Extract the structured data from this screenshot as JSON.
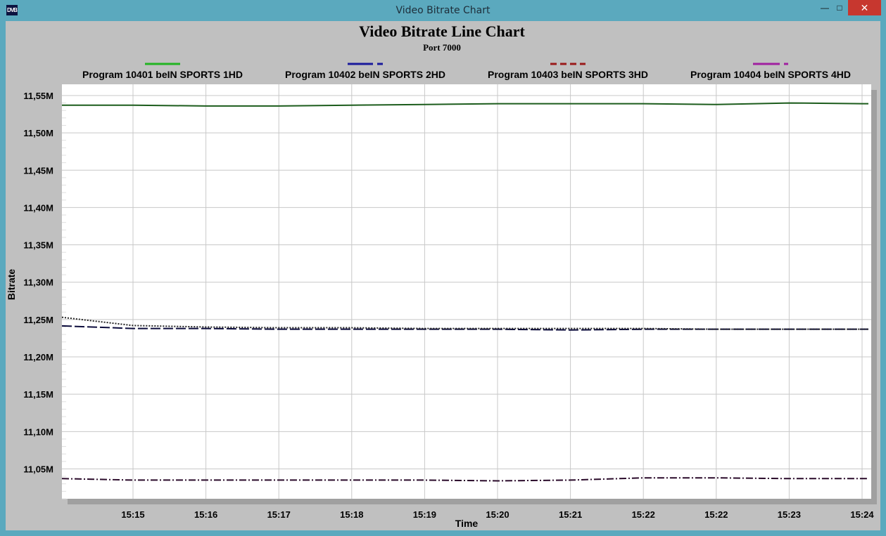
{
  "window": {
    "title": "Video Bitrate Chart",
    "icon_label": "DVB",
    "minimize_icon": "minimize-icon",
    "maximize_icon": "maximize-icon",
    "close_icon": "close-icon"
  },
  "chart_data": {
    "type": "line",
    "title": "Video Bitrate Line Chart",
    "subtitle": "Port 7000",
    "xlabel": "Time",
    "ylabel": "Bitrate",
    "x_ticks": [
      "15:15",
      "15:16",
      "15:17",
      "15:18",
      "15:19",
      "15:20",
      "15:21",
      "15:22",
      "15:22",
      "15:23",
      "15:24"
    ],
    "y_ticks": [
      "11,05M",
      "11,10M",
      "11,15M",
      "11,20M",
      "11,25M",
      "11,30M",
      "11,35M",
      "11,40M",
      "11,45M",
      "11,50M",
      "11,55M"
    ],
    "y_tick_values": [
      11.05,
      11.1,
      11.15,
      11.2,
      11.25,
      11.3,
      11.35,
      11.4,
      11.45,
      11.5,
      11.55
    ],
    "ylim": [
      11.01,
      11.565
    ],
    "y_unit": "M",
    "grid": true,
    "legend_placement": "top",
    "series": [
      {
        "name": "Program 10401 beIN SPORTS 1HD",
        "legend_color": "#22b422",
        "line_color": "#1c5c1c",
        "dash": "solid",
        "start": 11.537,
        "values": [
          11.537,
          11.536,
          11.536,
          11.537,
          11.538,
          11.539,
          11.539,
          11.539,
          11.538,
          11.54,
          11.539
        ]
      },
      {
        "name": "Program 10402 beIN SPORTS 2HD",
        "legend_color": "#1a1a9c",
        "line_color": "#0c0c3c",
        "dash": "long-dash",
        "start": 11.2415,
        "values": [
          11.238,
          11.238,
          11.237,
          11.237,
          11.237,
          11.237,
          11.236,
          11.237,
          11.237,
          11.237,
          11.237
        ]
      },
      {
        "name": "Program 10403 beIN SPORTS 3HD",
        "legend_color": "#9a1a1a",
        "line_color": "#222222",
        "dash": "dot",
        "start": 11.253,
        "values": [
          11.242,
          11.24,
          11.239,
          11.239,
          11.238,
          11.238,
          11.238,
          11.238,
          11.237,
          11.237,
          11.237
        ]
      },
      {
        "name": "Program 10404 beIN SPORTS 4HD",
        "legend_color": "#a020a0",
        "line_color": "#2a0a2a",
        "dash": "dash-dot",
        "start": 11.037,
        "values": [
          11.035,
          11.035,
          11.035,
          11.035,
          11.035,
          11.034,
          11.035,
          11.038,
          11.038,
          11.037,
          11.037
        ]
      }
    ]
  }
}
